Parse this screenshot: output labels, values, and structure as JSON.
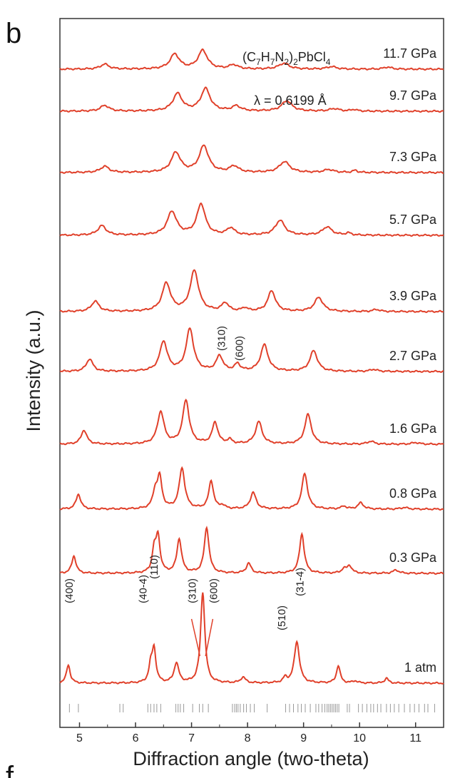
{
  "panel": {
    "letter": "b",
    "next_letter": "f"
  },
  "chart_data": {
    "type": "line",
    "title": "",
    "xlabel": "Diffraction angle (two-theta)",
    "ylabel": "Intensity (a.u.)",
    "xlim": [
      4.65,
      11.5
    ],
    "x_ticks": [
      5,
      6,
      7,
      8,
      9,
      10,
      11
    ],
    "x_tick_labels": [
      "5",
      "6",
      "7",
      "8",
      "9",
      "10",
      "11"
    ],
    "compound": {
      "base": "(C",
      "s1": "7",
      "h": "H",
      "s2": "7",
      "n": "N",
      "s3": "2",
      "close": ")",
      "s4": "2",
      "tail": "PbCl",
      "s5": "4"
    },
    "wavelength_label": "λ = 0.6199 Å",
    "colors": {
      "trace": "#e0402a",
      "frame": "#333333",
      "ticks": "#9a9a9a"
    },
    "series": [
      {
        "name": "11.7 GPa",
        "peaks": [
          [
            5.45,
            0.12,
            0.09
          ],
          [
            6.7,
            0.36,
            0.1
          ],
          [
            7.2,
            0.45,
            0.1
          ],
          [
            7.75,
            0.1,
            0.09
          ],
          [
            8.65,
            0.14,
            0.11
          ],
          [
            9.5,
            0.06,
            0.1
          ],
          [
            10.5,
            0.05,
            0.08
          ]
        ]
      },
      {
        "name": "9.7 GPa",
        "peaks": [
          [
            5.45,
            0.14,
            0.09
          ],
          [
            6.75,
            0.42,
            0.1
          ],
          [
            7.25,
            0.54,
            0.1
          ],
          [
            7.8,
            0.12,
            0.09
          ],
          [
            8.7,
            0.25,
            0.11
          ],
          [
            9.55,
            0.06,
            0.1
          ],
          [
            9.9,
            0.04,
            0.06
          ]
        ]
      },
      {
        "name": "7.3 GPa",
        "peaks": [
          [
            5.45,
            0.15,
            0.09
          ],
          [
            6.72,
            0.48,
            0.1
          ],
          [
            7.22,
            0.64,
            0.1
          ],
          [
            7.76,
            0.15,
            0.09
          ],
          [
            8.66,
            0.26,
            0.11
          ],
          [
            9.45,
            0.07,
            0.1
          ],
          [
            9.92,
            0.05,
            0.05
          ]
        ]
      },
      {
        "name": "5.7 GPa",
        "peaks": [
          [
            5.4,
            0.23,
            0.09
          ],
          [
            6.65,
            0.57,
            0.1
          ],
          [
            7.17,
            0.75,
            0.09
          ],
          [
            7.7,
            0.17,
            0.08
          ],
          [
            8.58,
            0.36,
            0.1
          ],
          [
            9.42,
            0.2,
            0.1
          ],
          [
            9.8,
            0.05,
            0.06
          ]
        ]
      },
      {
        "name": "3.9 GPa",
        "peaks": [
          [
            5.28,
            0.25,
            0.08
          ],
          [
            6.55,
            0.68,
            0.09
          ],
          [
            7.05,
            0.98,
            0.09
          ],
          [
            7.6,
            0.2,
            0.07
          ],
          [
            7.95,
            0.08,
            0.06
          ],
          [
            8.43,
            0.5,
            0.08
          ],
          [
            9.27,
            0.34,
            0.09
          ],
          [
            10.3,
            0.05,
            0.07
          ]
        ]
      },
      {
        "name": "2.7 GPa",
        "peaks": [
          [
            5.18,
            0.3,
            0.07
          ],
          [
            6.5,
            0.72,
            0.08
          ],
          [
            6.97,
            1.02,
            0.08
          ],
          [
            7.5,
            0.37,
            0.07
          ],
          [
            7.82,
            0.17,
            0.06
          ],
          [
            8.3,
            0.64,
            0.08
          ],
          [
            9.18,
            0.5,
            0.08
          ],
          [
            10.25,
            0.05,
            0.07
          ]
        ]
      },
      {
        "name": "1.6 GPa",
        "peaks": [
          [
            5.08,
            0.34,
            0.06
          ],
          [
            6.45,
            0.78,
            0.07
          ],
          [
            6.9,
            1.05,
            0.07
          ],
          [
            7.42,
            0.52,
            0.06
          ],
          [
            7.68,
            0.1,
            0.05
          ],
          [
            8.2,
            0.54,
            0.07
          ],
          [
            9.08,
            0.72,
            0.07
          ],
          [
            10.2,
            0.07,
            0.07
          ],
          [
            11.0,
            0.04,
            0.08
          ]
        ]
      },
      {
        "name": "0.8 GPa",
        "peaks": [
          [
            4.98,
            0.36,
            0.05
          ],
          [
            6.35,
            0.38,
            0.05
          ],
          [
            6.43,
            0.74,
            0.05
          ],
          [
            6.83,
            0.98,
            0.06
          ],
          [
            7.35,
            0.68,
            0.05
          ],
          [
            7.55,
            0.08,
            0.05
          ],
          [
            8.1,
            0.4,
            0.06
          ],
          [
            9.02,
            0.86,
            0.06
          ],
          [
            9.72,
            0.07,
            0.05
          ],
          [
            10.02,
            0.15,
            0.06
          ],
          [
            10.8,
            0.04,
            0.07
          ]
        ]
      },
      {
        "name": "0.3 GPa",
        "peaks": [
          [
            4.9,
            0.42,
            0.045
          ],
          [
            6.33,
            0.5,
            0.04
          ],
          [
            6.4,
            0.88,
            0.045
          ],
          [
            6.78,
            0.82,
            0.05
          ],
          [
            7.27,
            1.1,
            0.05
          ],
          [
            8.02,
            0.24,
            0.05
          ],
          [
            8.97,
            0.95,
            0.05
          ],
          [
            9.72,
            0.1,
            0.05
          ],
          [
            9.82,
            0.18,
            0.05
          ],
          [
            10.65,
            0.08,
            0.06
          ]
        ]
      },
      {
        "name": "1 atm",
        "peaks": [
          [
            4.8,
            0.44,
            0.04
          ],
          [
            6.27,
            0.38,
            0.04
          ],
          [
            6.33,
            0.8,
            0.04
          ],
          [
            6.73,
            0.48,
            0.05
          ],
          [
            7.2,
            2.2,
            0.045
          ],
          [
            7.92,
            0.14,
            0.05
          ],
          [
            8.67,
            0.12,
            0.04
          ],
          [
            8.88,
            1.0,
            0.055
          ],
          [
            9.62,
            0.42,
            0.04
          ],
          [
            9.92,
            0.05,
            0.05
          ],
          [
            10.48,
            0.12,
            0.04
          ]
        ]
      }
    ],
    "hkl_labels_1atm": [
      {
        "text": "(400)",
        "x": 4.8
      },
      {
        "text": "(40-4)",
        "x": 6.12
      },
      {
        "text": "(110)",
        "x": 6.32
      },
      {
        "text": "(310)",
        "x": 7.0
      },
      {
        "text": "(600)",
        "x": 7.38
      },
      {
        "text": "(510)",
        "x": 8.6
      },
      {
        "text": "(31-4)",
        "x": 8.92
      }
    ],
    "hkl_labels_2_7GPa": [
      {
        "text": "(310)",
        "x": 7.52
      },
      {
        "text": "(600)",
        "x": 7.84
      }
    ],
    "bragg_tick_positions": [
      4.82,
      4.98,
      5.72,
      5.78,
      6.22,
      6.27,
      6.33,
      6.38,
      6.45,
      6.72,
      6.76,
      6.8,
      6.86,
      7.02,
      7.14,
      7.2,
      7.3,
      7.73,
      7.77,
      7.8,
      7.83,
      7.87,
      7.93,
      7.98,
      8.05,
      8.12,
      8.35,
      8.68,
      8.75,
      8.82,
      8.9,
      8.96,
      9.03,
      9.12,
      9.22,
      9.27,
      9.33,
      9.38,
      9.42,
      9.45,
      9.48,
      9.51,
      9.54,
      9.57,
      9.6,
      9.63,
      9.78,
      9.82,
      9.98,
      10.05,
      10.13,
      10.2,
      10.25,
      10.32,
      10.38,
      10.48,
      10.55,
      10.62,
      10.7,
      10.8,
      10.9,
      10.98,
      11.06,
      11.16,
      11.22,
      11.34
    ]
  }
}
